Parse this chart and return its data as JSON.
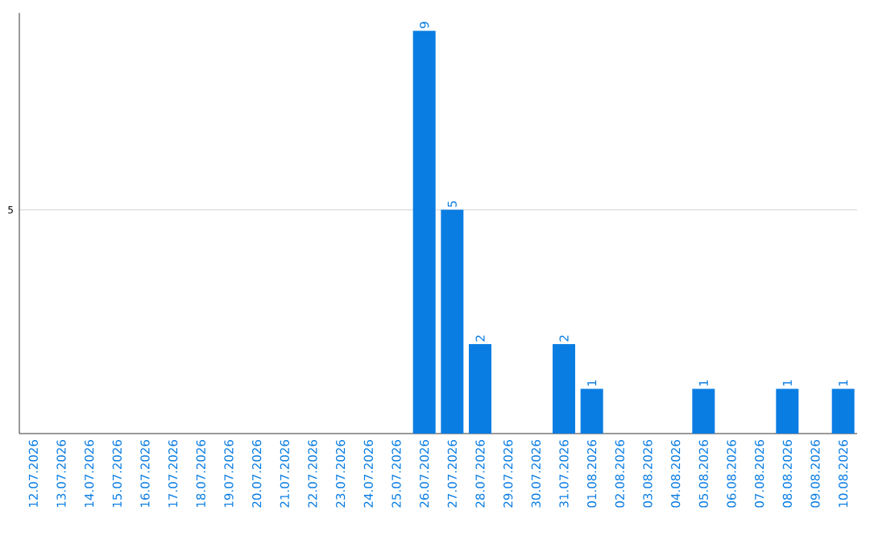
{
  "chart_data": {
    "type": "bar",
    "categories": [
      "12.07.2026",
      "13.07.2026",
      "14.07.2026",
      "15.07.2026",
      "16.07.2026",
      "17.07.2026",
      "18.07.2026",
      "19.07.2026",
      "20.07.2026",
      "21.07.2026",
      "22.07.2026",
      "23.07.2026",
      "24.07.2026",
      "25.07.2026",
      "26.07.2026",
      "27.07.2026",
      "28.07.2026",
      "29.07.2026",
      "30.07.2026",
      "31.07.2026",
      "01.08.2026",
      "02.08.2026",
      "03.08.2026",
      "04.08.2026",
      "05.08.2026",
      "06.08.2026",
      "07.08.2026",
      "08.08.2026",
      "09.08.2026",
      "10.08.2026"
    ],
    "values": [
      null,
      null,
      null,
      null,
      null,
      null,
      null,
      null,
      null,
      null,
      null,
      null,
      null,
      null,
      9,
      5,
      2,
      null,
      null,
      2,
      1,
      null,
      null,
      null,
      1,
      null,
      null,
      1,
      null,
      1
    ],
    "data_labels": true,
    "color": "#0a7de3",
    "ylim": [
      0,
      9.4
    ],
    "yticks": [
      5
    ],
    "grid": "y"
  }
}
